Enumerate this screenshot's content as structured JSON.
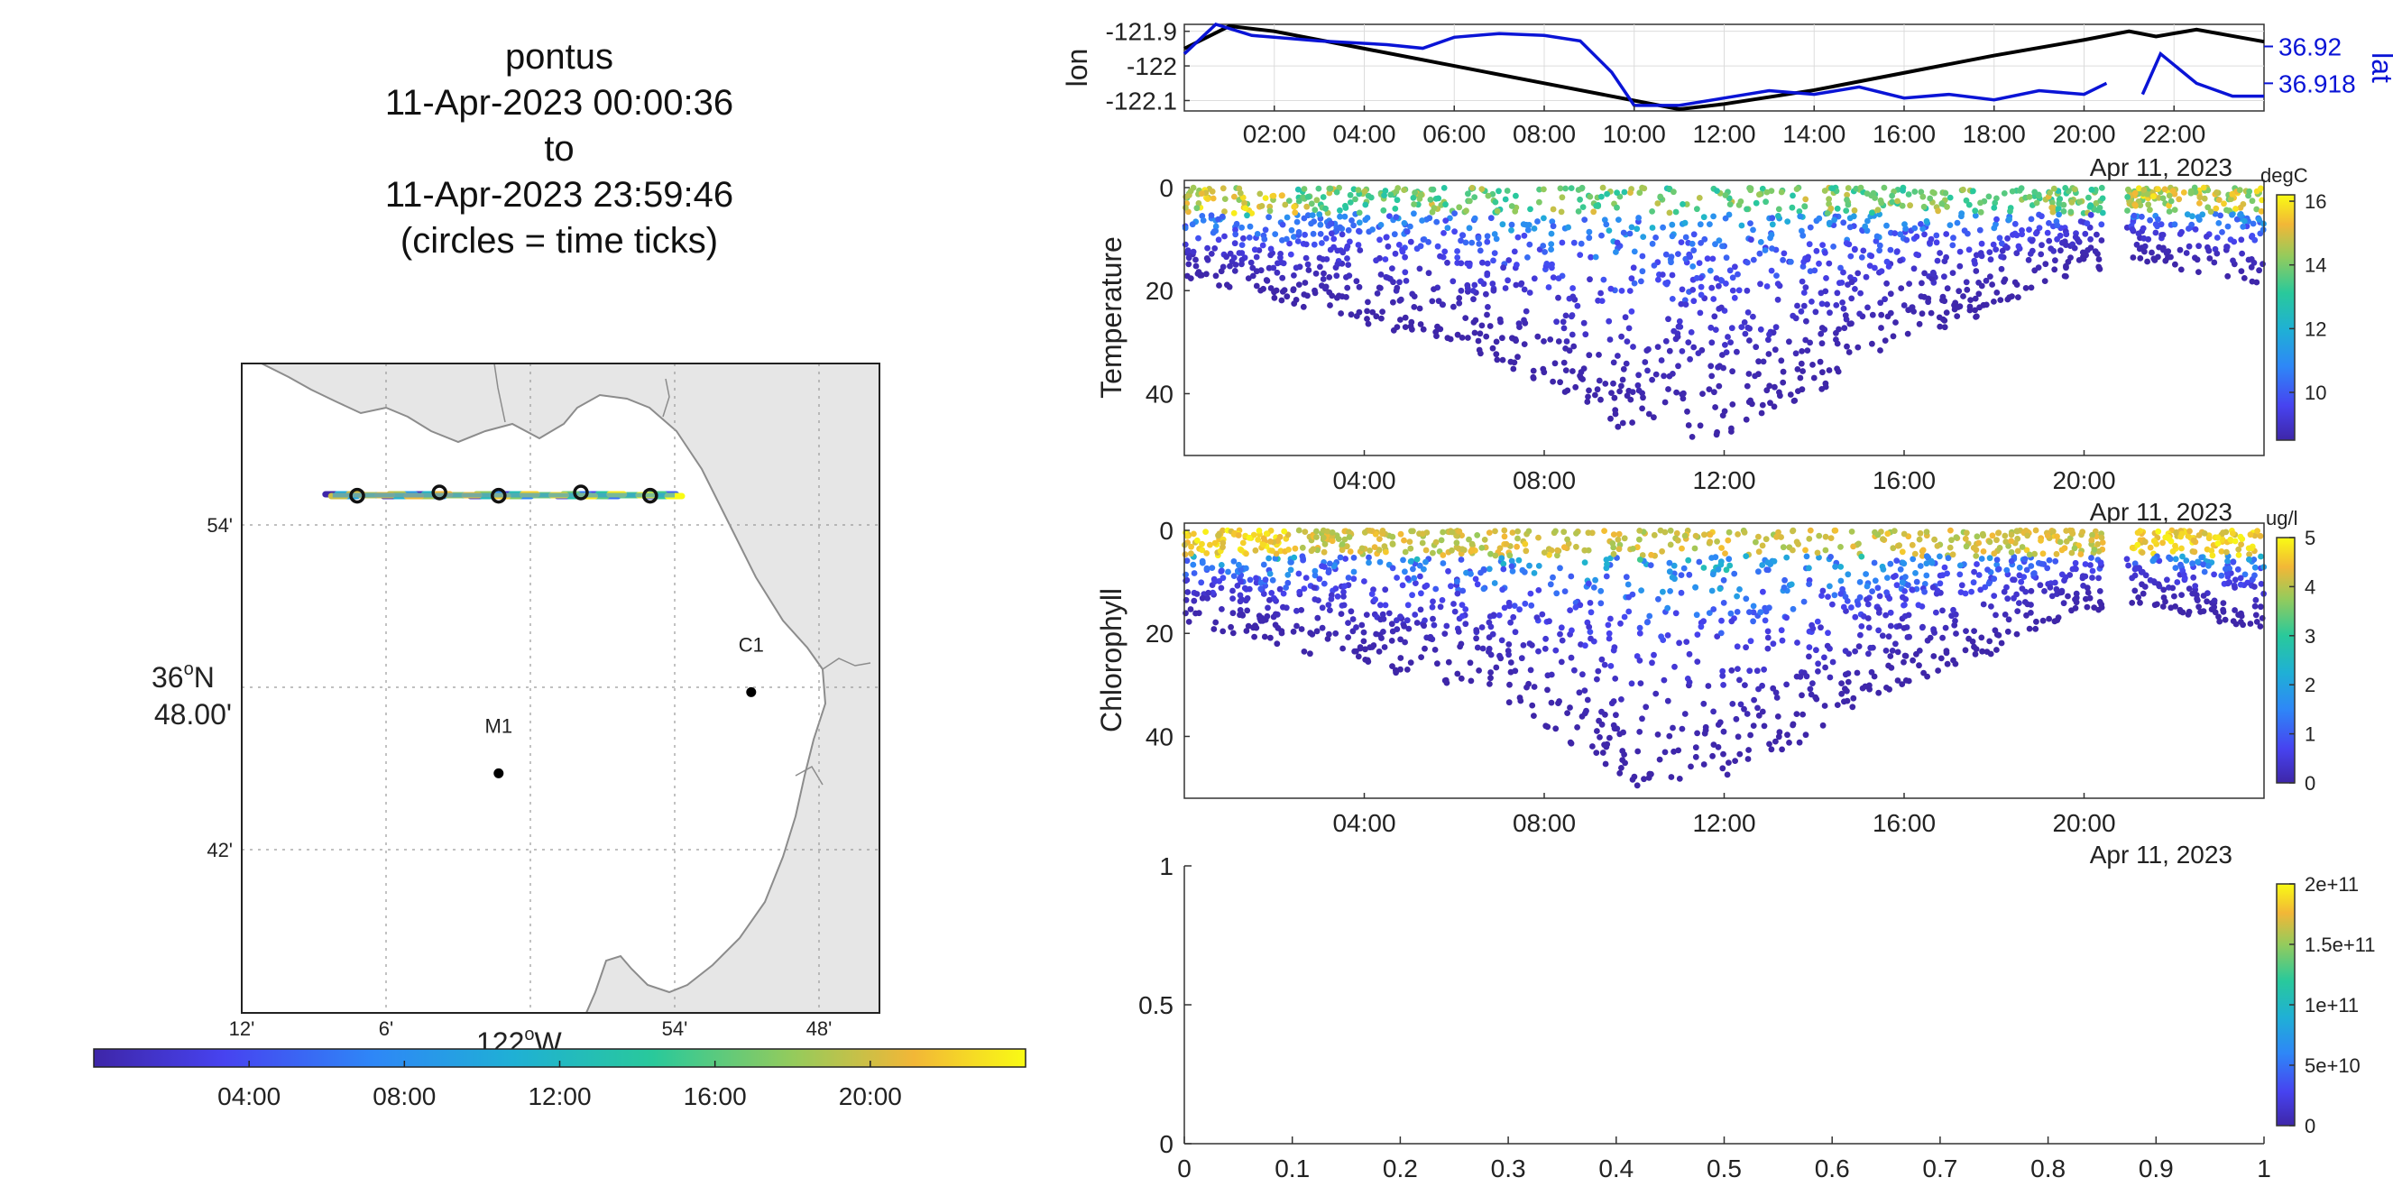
{
  "title": {
    "platform": "pontus",
    "start": "11-Apr-2023 00:00:36",
    "to": "to",
    "end": "11-Apr-2023 23:59:46",
    "note": "(circles = time ticks)"
  },
  "colors": {
    "track_black": "#000000",
    "lat_blue": "#0a14d6",
    "land": "#e6e6e6",
    "coast": "#8c8c8c",
    "parula": [
      "#3e26a8",
      "#4743f0",
      "#2e87f7",
      "#1fb0d5",
      "#29c99b",
      "#94cb5c",
      "#f2b737",
      "#f9fb14"
    ]
  },
  "chart_data": [
    {
      "type": "line",
      "panel": "position",
      "ylabel_left": "lon",
      "ylabel_right": "lat",
      "xticks": [
        "02:00",
        "04:00",
        "06:00",
        "08:00",
        "10:00",
        "12:00",
        "14:00",
        "16:00",
        "18:00",
        "20:00",
        "22:00"
      ],
      "xdate": "Apr 11, 2023",
      "yticks_left": [
        "-121.9",
        "-122",
        "-122.1"
      ],
      "yticks_right": [
        "36.92",
        "36.918"
      ],
      "ylim_left": [
        -122.13,
        -121.88
      ],
      "ylim_right": [
        36.9165,
        36.9212
      ],
      "series": [
        {
          "name": "lon",
          "color": "#000000",
          "x": [
            0,
            1.0,
            2.0,
            4.0,
            6.0,
            8.0,
            10.0,
            11.0,
            12.0,
            14.0,
            16.0,
            18.0,
            20.0,
            21.0,
            21.6,
            22.5,
            24.0
          ],
          "y": [
            -121.95,
            -121.885,
            -121.9,
            -121.95,
            -122.0,
            -122.05,
            -122.1,
            -122.125,
            -122.11,
            -122.07,
            -122.02,
            -121.97,
            -121.925,
            -121.9,
            -121.915,
            -121.895,
            -121.93
          ]
        },
        {
          "name": "lat",
          "color": "#0a14d6",
          "x": [
            0,
            0.7,
            1.5,
            3.0,
            4.5,
            5.3,
            6.0,
            7.0,
            8.0,
            8.8,
            9.5,
            10.0,
            11.0,
            12.0,
            13.0,
            14.0,
            15.0,
            16.0,
            17.0,
            18.0,
            19.0,
            20.0,
            20.5,
            21.0,
            21.3,
            21.7,
            22.5,
            23.3,
            24.0
          ],
          "y": [
            36.9196,
            36.9212,
            36.9206,
            36.9203,
            36.9201,
            36.9199,
            36.9205,
            36.9207,
            36.9206,
            36.9203,
            36.9186,
            36.9168,
            36.9168,
            36.9172,
            36.9176,
            36.9174,
            36.9178,
            36.9172,
            36.9174,
            36.9171,
            36.9176,
            36.9174,
            36.918,
            null,
            36.9174,
            36.9196,
            36.918,
            36.9173,
            36.9173
          ]
        }
      ]
    },
    {
      "type": "scatter",
      "panel": "temperature",
      "ylabel": "Temperature",
      "xticks": [
        "04:00",
        "08:00",
        "12:00",
        "16:00",
        "20:00"
      ],
      "xdate": "Apr 11, 2023",
      "yticks": [
        "0",
        "20",
        "40"
      ],
      "ylim": [
        0,
        52
      ],
      "colorbar": {
        "unit": "degC",
        "ticks": [
          "10",
          "12",
          "14",
          "16"
        ],
        "range": [
          8.5,
          16.2
        ]
      },
      "depth_envelope_m": {
        "x": [
          0,
          2,
          4,
          6,
          8,
          10,
          12,
          14,
          16,
          18,
          20,
          20.4,
          21.0,
          22,
          24
        ],
        "max_depth": [
          18,
          22,
          27,
          30,
          38,
          50,
          48,
          40,
          30,
          24,
          16,
          null,
          14,
          16,
          20
        ]
      },
      "surface_value_range": [
        11,
        16
      ],
      "deep_value_range": [
        8.5,
        10
      ]
    },
    {
      "type": "scatter",
      "panel": "chlorophyll",
      "ylabel": "Chlorophyll",
      "xticks": [
        "04:00",
        "08:00",
        "12:00",
        "16:00",
        "20:00"
      ],
      "xdate": "Apr 11, 2023",
      "yticks": [
        "0",
        "20",
        "40"
      ],
      "ylim": [
        0,
        52
      ],
      "colorbar": {
        "unit": "ug/l",
        "ticks": [
          "0",
          "1",
          "2",
          "3",
          "4",
          "5"
        ],
        "range": [
          0,
          5
        ]
      },
      "depth_envelope_m": {
        "x": [
          0,
          2,
          4,
          6,
          8,
          10,
          12,
          14,
          16,
          18,
          20,
          20.4,
          21.0,
          22,
          24
        ],
        "max_depth": [
          18,
          22,
          27,
          30,
          38,
          50,
          48,
          40,
          30,
          24,
          16,
          null,
          14,
          16,
          20
        ]
      },
      "surface_value_range": [
        3,
        5
      ],
      "deep_value_range": [
        0,
        1
      ]
    },
    {
      "type": "scatter",
      "panel": "empty",
      "xticks": [
        "0",
        "0.1",
        "0.2",
        "0.3",
        "0.4",
        "0.5",
        "0.6",
        "0.7",
        "0.8",
        "0.9",
        "1"
      ],
      "yticks": [
        "0",
        "0.5",
        "1"
      ],
      "xlim": [
        0,
        1
      ],
      "ylim": [
        0,
        1
      ],
      "colorbar": {
        "ticks": [
          "0",
          "5e+10",
          "1e+11",
          "1.5e+11",
          "2e+11"
        ],
        "range": [
          0,
          200000000000
        ]
      }
    }
  ],
  "map": {
    "lon_ticks": [
      "12'",
      "6'",
      "122°W",
      "54'",
      "48'"
    ],
    "lon_values": [
      -122.2,
      -122.1,
      -122.0,
      -121.9,
      -121.8
    ],
    "lat_ticks": [
      "54'",
      "36°N 48.00'",
      "42'"
    ],
    "lat_values": [
      36.9,
      36.8,
      36.7
    ],
    "lat_center_line1": "36",
    "lat_center_sup": "o",
    "lat_center_n": "N",
    "lat_center_line2": "48.00'",
    "lon_center_main": "122",
    "lon_center_sup": "o",
    "lon_center_w": "W",
    "stations": [
      {
        "name": "C1",
        "lon": -121.847,
        "lat": 36.797
      },
      {
        "name": "M1",
        "lon": -122.022,
        "lat": 36.747
      }
    ],
    "time_tick_circles": [
      {
        "lon": -122.12,
        "lat": 36.918
      },
      {
        "lon": -122.063,
        "lat": 36.92
      },
      {
        "lon": -122.022,
        "lat": 36.918
      },
      {
        "lon": -121.965,
        "lat": 36.92
      },
      {
        "lon": -121.917,
        "lat": 36.918
      }
    ],
    "track": {
      "lon": [
        -122.137,
        -121.9
      ],
      "lat": [
        36.9183,
        36.9183
      ]
    },
    "time_colorbar_ticks": [
      "04:00",
      "08:00",
      "12:00",
      "16:00",
      "20:00"
    ]
  }
}
